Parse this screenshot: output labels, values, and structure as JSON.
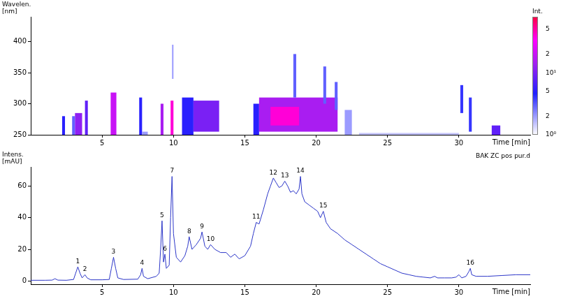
{
  "chart_data": [
    {
      "type": "heatmap",
      "xlabel": "Time [min]",
      "ylabel": "Wavelen. [nm]",
      "xlim": [
        0,
        35
      ],
      "xticks": [
        5,
        10,
        15,
        20,
        25,
        30
      ],
      "ylim": [
        250,
        440
      ],
      "yticks": [
        250,
        300,
        350,
        400
      ],
      "grid": false,
      "cells": [
        {
          "time": [
            2.2,
            2.4
          ],
          "wavelength": [
            250,
            280
          ],
          "intensity": 5
        },
        {
          "time": [
            2.9,
            3.1
          ],
          "wavelength": [
            250,
            280
          ],
          "intensity": 3
        },
        {
          "time": [
            3.1,
            3.6
          ],
          "wavelength": [
            250,
            285
          ],
          "intensity": 12
        },
        {
          "time": [
            3.8,
            4.0
          ],
          "wavelength": [
            250,
            305
          ],
          "intensity": 8
        },
        {
          "time": [
            5.6,
            6.0
          ],
          "wavelength": [
            250,
            318
          ],
          "intensity": 20
        },
        {
          "time": [
            7.6,
            7.8
          ],
          "wavelength": [
            250,
            310
          ],
          "intensity": 5
        },
        {
          "time": [
            7.8,
            8.2
          ],
          "wavelength": [
            250,
            255
          ],
          "intensity": 2
        },
        {
          "time": [
            9.1,
            9.3
          ],
          "wavelength": [
            250,
            300
          ],
          "intensity": 15
        },
        {
          "time": [
            9.8,
            10.0
          ],
          "wavelength": [
            250,
            305
          ],
          "intensity": 40
        },
        {
          "time": [
            9.9,
            10.0
          ],
          "wavelength": [
            340,
            395
          ],
          "intensity": 2
        },
        {
          "time": [
            10.6,
            11.4
          ],
          "wavelength": [
            250,
            310
          ],
          "intensity": 5
        },
        {
          "time": [
            11.4,
            13.2
          ],
          "wavelength": [
            255,
            305
          ],
          "intensity": 10
        },
        {
          "time": [
            15.6,
            16.0
          ],
          "wavelength": [
            250,
            300
          ],
          "intensity": 5
        },
        {
          "time": [
            16.0,
            21.5
          ],
          "wavelength": [
            255,
            310
          ],
          "intensity": 15
        },
        {
          "time": [
            16.8,
            18.8
          ],
          "wavelength": [
            265,
            295
          ],
          "intensity": 40
        },
        {
          "time": [
            18.4,
            18.6
          ],
          "wavelength": [
            310,
            380
          ],
          "intensity": 3
        },
        {
          "time": [
            20.5,
            20.7
          ],
          "wavelength": [
            300,
            360
          ],
          "intensity": 3
        },
        {
          "time": [
            21.3,
            21.5
          ],
          "wavelength": [
            290,
            335
          ],
          "intensity": 3
        },
        {
          "time": [
            22.0,
            22.5
          ],
          "wavelength": [
            250,
            290
          ],
          "intensity": 2
        },
        {
          "time": [
            23.0,
            30.0
          ],
          "wavelength": [
            250,
            253
          ],
          "intensity": 1.5
        },
        {
          "time": [
            30.1,
            30.3
          ],
          "wavelength": [
            285,
            330
          ],
          "intensity": 4
        },
        {
          "time": [
            30.7,
            30.9
          ],
          "wavelength": [
            255,
            310
          ],
          "intensity": 4
        },
        {
          "time": [
            32.3,
            32.9
          ],
          "wavelength": [
            250,
            265
          ],
          "intensity": 8
        }
      ],
      "colorbar": {
        "title": "Int.",
        "range": [
          1,
          80
        ],
        "log": true,
        "ticks": [
          {
            "value": 1,
            "label": "10⁰"
          },
          2,
          5,
          {
            "value": 10,
            "label": "10¹"
          },
          {
            "value": 20,
            "label": "2"
          },
          {
            "value": 50,
            "label": "5"
          }
        ]
      }
    },
    {
      "type": "line",
      "title": "BAK ZC pos pur.d",
      "xlabel": "Time [min]",
      "ylabel": "Intens. [mAU]",
      "xlim": [
        0,
        35
      ],
      "xticks": [
        5,
        10,
        15,
        20,
        25,
        30
      ],
      "ylim": [
        -2,
        72
      ],
      "yticks": [
        0,
        20,
        40,
        60
      ],
      "grid": false,
      "color": "#2b35c8",
      "x": [
        0,
        1,
        1.5,
        1.7,
        1.9,
        2.5,
        3.0,
        3.15,
        3.3,
        3.45,
        3.6,
        3.8,
        3.95,
        4.2,
        5,
        5.5,
        5.65,
        5.8,
        5.95,
        6.1,
        6.5,
        7.5,
        7.7,
        7.8,
        7.9,
        8.2,
        8.8,
        9.0,
        9.1,
        9.2,
        9.3,
        9.4,
        9.5,
        9.7,
        9.8,
        9.9,
        10.0,
        10.2,
        10.5,
        10.8,
        11.0,
        11.1,
        11.3,
        11.6,
        11.9,
        12.0,
        12.2,
        12.4,
        12.6,
        12.9,
        13.3,
        13.7,
        14.0,
        14.3,
        14.6,
        15.0,
        15.4,
        15.6,
        15.8,
        16.0,
        16.3,
        16.6,
        16.8,
        17.0,
        17.2,
        17.4,
        17.6,
        17.8,
        18.0,
        18.2,
        18.4,
        18.6,
        18.8,
        18.9,
        19.0,
        19.2,
        19.5,
        19.8,
        20.1,
        20.3,
        20.5,
        20.7,
        21.0,
        21.5,
        22.0,
        22.5,
        23.0,
        23.5,
        24.0,
        24.5,
        25.0,
        25.5,
        26.0,
        26.5,
        27.0,
        27.5,
        28.0,
        28.3,
        28.5,
        29.0,
        29.5,
        29.8,
        30.0,
        30.2,
        30.5,
        30.7,
        30.8,
        30.9,
        31.2,
        32,
        33,
        34,
        35
      ],
      "values": [
        0.5,
        0.5,
        0.6,
        1.5,
        0.6,
        0.5,
        1,
        5,
        9,
        5,
        2,
        4,
        2,
        0.8,
        0.8,
        1,
        8,
        15,
        8,
        2,
        1,
        1.2,
        4,
        8,
        3,
        1.5,
        3,
        5,
        20,
        38,
        12,
        17,
        8,
        10,
        40,
        66,
        30,
        15,
        12,
        16,
        22,
        28,
        20,
        23,
        27,
        31,
        22,
        20,
        23,
        20,
        18,
        18,
        15,
        17,
        14,
        16,
        22,
        30,
        37,
        36,
        45,
        55,
        60,
        65,
        62,
        59,
        60,
        63,
        60,
        56,
        57,
        55,
        58,
        66,
        55,
        50,
        48,
        46,
        44,
        40,
        44,
        37,
        33,
        30,
        26,
        23,
        20,
        17,
        14,
        11,
        9,
        7,
        5,
        4,
        3,
        2.5,
        2,
        3,
        2,
        2,
        2,
        2.5,
        4,
        2,
        3,
        6,
        8,
        4,
        3,
        3,
        3.5,
        4,
        4
      ],
      "peaks": [
        {
          "label": "1",
          "x": 3.3,
          "y": 9
        },
        {
          "label": "2",
          "x": 3.8,
          "y": 4
        },
        {
          "label": "3",
          "x": 5.8,
          "y": 15
        },
        {
          "label": "4",
          "x": 7.8,
          "y": 8
        },
        {
          "label": "5",
          "x": 9.2,
          "y": 38
        },
        {
          "label": "6",
          "x": 9.4,
          "y": 17
        },
        {
          "label": "7",
          "x": 9.9,
          "y": 66
        },
        {
          "label": "8",
          "x": 11.1,
          "y": 28
        },
        {
          "label": "9",
          "x": 12.0,
          "y": 31
        },
        {
          "label": "10",
          "x": 12.6,
          "y": 23
        },
        {
          "label": "11",
          "x": 15.8,
          "y": 37
        },
        {
          "label": "12",
          "x": 17.0,
          "y": 65
        },
        {
          "label": "13",
          "x": 17.8,
          "y": 63
        },
        {
          "label": "14",
          "x": 18.9,
          "y": 66
        },
        {
          "label": "15",
          "x": 20.5,
          "y": 44
        },
        {
          "label": "16",
          "x": 30.8,
          "y": 8
        }
      ]
    }
  ]
}
